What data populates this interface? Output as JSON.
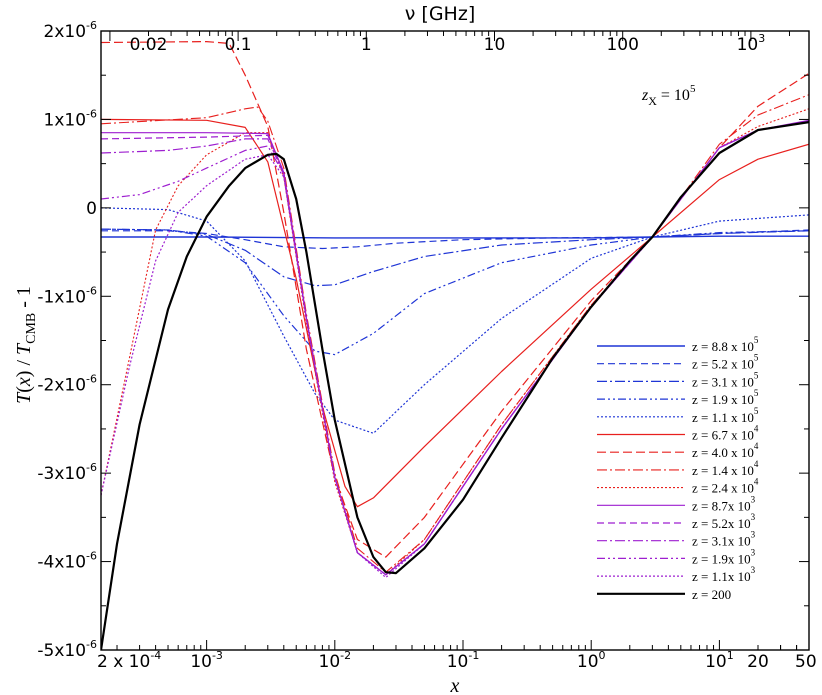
{
  "chart_data": {
    "type": "line",
    "top_axis_title": "ν  [GHz]",
    "x_axis_title": "x",
    "y_axis_title": "T(x) / T_CMB - 1",
    "annotation": "z_X = 10^5",
    "x_scale": "log",
    "xlim": [
      0.00015,
      50
    ],
    "ylim": [
      -5e-06,
      2e-06
    ],
    "x_ticks": [
      {
        "value": 0.0002,
        "label": "2 x 10^-4"
      },
      {
        "value": 0.001,
        "label": "10^-3"
      },
      {
        "value": 0.01,
        "label": "10^-2"
      },
      {
        "value": 0.1,
        "label": "10^-1"
      },
      {
        "value": 1,
        "label": "10^0"
      },
      {
        "value": 10,
        "label": "10^1"
      },
      {
        "value": 20,
        "label": "20"
      },
      {
        "value": 50,
        "label": "50"
      }
    ],
    "y_ticks": [
      {
        "value": 2e-06,
        "label": "2x10^-6"
      },
      {
        "value": 1e-06,
        "label": "1x10^-6"
      },
      {
        "value": 0,
        "label": "0"
      },
      {
        "value": -1e-06,
        "label": "-1x10^-6"
      },
      {
        "value": -2e-06,
        "label": "-2x10^-6"
      },
      {
        "value": -3e-06,
        "label": "-3x10^-6"
      },
      {
        "value": -4e-06,
        "label": "-4x10^-6"
      },
      {
        "value": -5e-06,
        "label": "-5x10^-6"
      }
    ],
    "top_ticks": [
      {
        "value": 0.02,
        "label": "0.02"
      },
      {
        "value": 0.1,
        "label": "0.1"
      },
      {
        "value": 1,
        "label": "1"
      },
      {
        "value": 10,
        "label": "10"
      },
      {
        "value": 100,
        "label": "100"
      },
      {
        "value": 1000,
        "label": "10^3"
      }
    ],
    "ghz_per_x": 56.8,
    "legend_position": "bottom-right",
    "series": [
      {
        "name": "z = 8.8 x 10^5",
        "color": "#1f35d6",
        "dash": "",
        "width": 1.4,
        "points": [
          [
            0.00015,
            -0.33
          ],
          [
            0.001,
            -0.33
          ],
          [
            0.01,
            -0.34
          ],
          [
            0.1,
            -0.34
          ],
          [
            1,
            -0.34
          ],
          [
            3,
            -0.33
          ],
          [
            10,
            -0.32
          ],
          [
            50,
            -0.32
          ]
        ]
      },
      {
        "name": "z = 5.2 x 10^5",
        "color": "#1f35d6",
        "dash": "7,4",
        "width": 1.2,
        "points": [
          [
            0.00015,
            -0.26
          ],
          [
            0.0005,
            -0.26
          ],
          [
            0.001,
            -0.29
          ],
          [
            0.002,
            -0.36
          ],
          [
            0.004,
            -0.44
          ],
          [
            0.008,
            -0.46
          ],
          [
            0.015,
            -0.44
          ],
          [
            0.03,
            -0.4
          ],
          [
            0.1,
            -0.36
          ],
          [
            0.5,
            -0.34
          ],
          [
            3,
            -0.33
          ],
          [
            10,
            -0.29
          ],
          [
            50,
            -0.25
          ]
        ]
      },
      {
        "name": "z = 3.1 x 10^5",
        "color": "#1f35d6",
        "dash": "10,3,2,3",
        "width": 1.2,
        "points": [
          [
            0.00015,
            -0.24
          ],
          [
            0.0005,
            -0.25
          ],
          [
            0.001,
            -0.3
          ],
          [
            0.002,
            -0.48
          ],
          [
            0.004,
            -0.78
          ],
          [
            0.007,
            -0.88
          ],
          [
            0.01,
            -0.87
          ],
          [
            0.02,
            -0.72
          ],
          [
            0.05,
            -0.55
          ],
          [
            0.2,
            -0.42
          ],
          [
            1,
            -0.36
          ],
          [
            3,
            -0.33
          ],
          [
            10,
            -0.29
          ],
          [
            50,
            -0.26
          ]
        ]
      },
      {
        "name": "z = 1.9 x 10^5",
        "color": "#1f35d6",
        "dash": "8,3,2,3,2,3",
        "width": 1.2,
        "points": [
          [
            0.00015,
            -0.24
          ],
          [
            0.0005,
            -0.25
          ],
          [
            0.001,
            -0.32
          ],
          [
            0.002,
            -0.62
          ],
          [
            0.004,
            -1.22
          ],
          [
            0.007,
            -1.62
          ],
          [
            0.01,
            -1.66
          ],
          [
            0.02,
            -1.42
          ],
          [
            0.05,
            -0.97
          ],
          [
            0.2,
            -0.62
          ],
          [
            1,
            -0.42
          ],
          [
            3,
            -0.33
          ],
          [
            10,
            -0.28
          ],
          [
            50,
            -0.26
          ]
        ]
      },
      {
        "name": "z = 1.1 x 10^5",
        "color": "#1f35d6",
        "dash": "2,2",
        "width": 1.2,
        "points": [
          [
            0.00015,
            0.0
          ],
          [
            0.0005,
            -0.02
          ],
          [
            0.001,
            -0.15
          ],
          [
            0.002,
            -0.6
          ],
          [
            0.004,
            -1.45
          ],
          [
            0.007,
            -2.1
          ],
          [
            0.01,
            -2.4
          ],
          [
            0.02,
            -2.55
          ],
          [
            0.05,
            -2.0
          ],
          [
            0.2,
            -1.25
          ],
          [
            1,
            -0.57
          ],
          [
            3,
            -0.33
          ],
          [
            10,
            -0.15
          ],
          [
            50,
            -0.08
          ]
        ]
      },
      {
        "name": "z = 6.7 x 10^4",
        "color": "#e8201e",
        "dash": "",
        "width": 1.2,
        "points": [
          [
            0.00015,
            1.0
          ],
          [
            0.001,
            0.99
          ],
          [
            0.002,
            0.91
          ],
          [
            0.003,
            0.52
          ],
          [
            0.005,
            -0.8
          ],
          [
            0.008,
            -2.25
          ],
          [
            0.012,
            -3.15
          ],
          [
            0.015,
            -3.38
          ],
          [
            0.02,
            -3.28
          ],
          [
            0.05,
            -2.7
          ],
          [
            0.2,
            -1.85
          ],
          [
            1,
            -0.92
          ],
          [
            3,
            -0.33
          ],
          [
            10,
            0.32
          ],
          [
            20,
            0.55
          ],
          [
            50,
            0.72
          ]
        ]
      },
      {
        "name": "z = 4.0 x 10^4",
        "color": "#e8201e",
        "dash": "9,4",
        "width": 1.2,
        "points": [
          [
            0.00015,
            1.87
          ],
          [
            0.001,
            1.88
          ],
          [
            0.0015,
            1.86
          ],
          [
            0.002,
            1.5
          ],
          [
            0.003,
            0.92
          ],
          [
            0.004,
            -0.05
          ],
          [
            0.006,
            -1.6
          ],
          [
            0.01,
            -3.05
          ],
          [
            0.015,
            -3.75
          ],
          [
            0.025,
            -3.95
          ],
          [
            0.05,
            -3.5
          ],
          [
            0.2,
            -2.3
          ],
          [
            1,
            -1.05
          ],
          [
            3,
            -0.33
          ],
          [
            10,
            0.68
          ],
          [
            20,
            1.15
          ],
          [
            50,
            1.52
          ]
        ]
      },
      {
        "name": "z = 1.4 x 10^4",
        "color": "#e8201e",
        "dash": "10,3,2,3",
        "width": 1.1,
        "points": [
          [
            0.00015,
            0.95
          ],
          [
            0.001,
            1.02
          ],
          [
            0.002,
            1.12
          ],
          [
            0.0025,
            1.14
          ],
          [
            0.003,
            0.98
          ],
          [
            0.004,
            0.45
          ],
          [
            0.006,
            -1.2
          ],
          [
            0.01,
            -3.0
          ],
          [
            0.015,
            -3.85
          ],
          [
            0.025,
            -4.12
          ],
          [
            0.05,
            -3.75
          ],
          [
            0.2,
            -2.45
          ],
          [
            1,
            -1.1
          ],
          [
            3,
            -0.33
          ],
          [
            10,
            0.72
          ],
          [
            20,
            1.05
          ],
          [
            50,
            1.28
          ]
        ]
      },
      {
        "name": "z = 2.4 x 10^4",
        "color": "#e8201e",
        "dash": "2,2",
        "width": 1.1,
        "points": [
          [
            0.00015,
            -3.25
          ],
          [
            0.00025,
            -1.7
          ],
          [
            0.0004,
            -0.25
          ],
          [
            0.0006,
            0.25
          ],
          [
            0.001,
            0.6
          ],
          [
            0.002,
            0.85
          ],
          [
            0.003,
            0.85
          ],
          [
            0.004,
            0.35
          ],
          [
            0.006,
            -1.3
          ],
          [
            0.01,
            -3.1
          ],
          [
            0.015,
            -3.9
          ],
          [
            0.025,
            -4.15
          ],
          [
            0.05,
            -3.75
          ],
          [
            0.2,
            -2.45
          ],
          [
            1,
            -1.1
          ],
          [
            3,
            -0.33
          ],
          [
            10,
            0.68
          ],
          [
            20,
            0.92
          ],
          [
            50,
            1.12
          ]
        ]
      },
      {
        "name": "z = 8.7x 10^3",
        "color": "#9e1fd0",
        "dash": "",
        "width": 1.2,
        "points": [
          [
            0.00015,
            0.85
          ],
          [
            0.001,
            0.85
          ],
          [
            0.003,
            0.84
          ],
          [
            0.004,
            0.4
          ],
          [
            0.006,
            -1.25
          ],
          [
            0.01,
            -3.05
          ],
          [
            0.015,
            -3.9
          ],
          [
            0.025,
            -4.15
          ],
          [
            0.05,
            -3.8
          ],
          [
            0.2,
            -2.5
          ],
          [
            1,
            -1.12
          ],
          [
            3,
            -0.33
          ],
          [
            10,
            0.68
          ],
          [
            20,
            0.88
          ],
          [
            50,
            0.99
          ]
        ]
      },
      {
        "name": "z = 5.2x 10^3",
        "color": "#9e1fd0",
        "dash": "7,4",
        "width": 1.2,
        "points": [
          [
            0.00015,
            0.78
          ],
          [
            0.001,
            0.8
          ],
          [
            0.003,
            0.82
          ],
          [
            0.004,
            0.4
          ],
          [
            0.006,
            -1.25
          ],
          [
            0.01,
            -3.05
          ],
          [
            0.015,
            -3.9
          ],
          [
            0.025,
            -4.15
          ],
          [
            0.05,
            -3.8
          ],
          [
            0.2,
            -2.5
          ],
          [
            1,
            -1.12
          ],
          [
            3,
            -0.33
          ],
          [
            10,
            0.68
          ],
          [
            20,
            0.88
          ],
          [
            50,
            0.98
          ]
        ]
      },
      {
        "name": "z = 3.1x 10^3",
        "color": "#9e1fd0",
        "dash": "10,3,2,3",
        "width": 1.2,
        "points": [
          [
            0.00015,
            0.62
          ],
          [
            0.0005,
            0.65
          ],
          [
            0.001,
            0.7
          ],
          [
            0.002,
            0.78
          ],
          [
            0.003,
            0.78
          ],
          [
            0.004,
            0.38
          ],
          [
            0.006,
            -1.25
          ],
          [
            0.01,
            -3.05
          ],
          [
            0.015,
            -3.9
          ],
          [
            0.025,
            -4.15
          ],
          [
            0.05,
            -3.8
          ],
          [
            0.2,
            -2.5
          ],
          [
            1,
            -1.12
          ],
          [
            3,
            -0.33
          ],
          [
            10,
            0.68
          ],
          [
            20,
            0.88
          ],
          [
            50,
            0.98
          ]
        ]
      },
      {
        "name": "z = 1.9x 10^3",
        "color": "#9e1fd0",
        "dash": "8,3,2,3,2,3",
        "width": 1.2,
        "points": [
          [
            0.00015,
            0.1
          ],
          [
            0.0003,
            0.15
          ],
          [
            0.0006,
            0.3
          ],
          [
            0.001,
            0.45
          ],
          [
            0.002,
            0.65
          ],
          [
            0.003,
            0.7
          ],
          [
            0.004,
            0.38
          ],
          [
            0.006,
            -1.25
          ],
          [
            0.01,
            -3.05
          ],
          [
            0.015,
            -3.9
          ],
          [
            0.025,
            -4.15
          ],
          [
            0.05,
            -3.8
          ],
          [
            0.2,
            -2.5
          ],
          [
            1,
            -1.12
          ],
          [
            3,
            -0.33
          ],
          [
            10,
            0.68
          ],
          [
            20,
            0.88
          ],
          [
            50,
            0.98
          ]
        ]
      },
      {
        "name": "z = 1.1x 10^3",
        "color": "#9e1fd0",
        "dash": "2,2",
        "width": 1.2,
        "points": [
          [
            0.00015,
            -3.25
          ],
          [
            0.00025,
            -1.8
          ],
          [
            0.0004,
            -0.6
          ],
          [
            0.0006,
            -0.05
          ],
          [
            0.001,
            0.25
          ],
          [
            0.002,
            0.55
          ],
          [
            0.003,
            0.6
          ],
          [
            0.004,
            0.35
          ],
          [
            0.006,
            -1.25
          ],
          [
            0.01,
            -3.05
          ],
          [
            0.015,
            -3.9
          ],
          [
            0.025,
            -4.18
          ],
          [
            0.05,
            -3.8
          ],
          [
            0.2,
            -2.5
          ],
          [
            1,
            -1.12
          ],
          [
            3,
            -0.33
          ],
          [
            10,
            0.68
          ],
          [
            20,
            0.88
          ],
          [
            50,
            0.98
          ]
        ]
      },
      {
        "name": "z = 200",
        "color": "#000000",
        "dash": "",
        "width": 2.2,
        "points": [
          [
            0.00015,
            -5.0
          ],
          [
            0.0002,
            -3.8
          ],
          [
            0.0003,
            -2.45
          ],
          [
            0.0005,
            -1.15
          ],
          [
            0.0007,
            -0.55
          ],
          [
            0.001,
            -0.1
          ],
          [
            0.0015,
            0.25
          ],
          [
            0.002,
            0.45
          ],
          [
            0.003,
            0.6
          ],
          [
            0.0035,
            0.61
          ],
          [
            0.004,
            0.55
          ],
          [
            0.005,
            0.1
          ],
          [
            0.006,
            -0.5
          ],
          [
            0.008,
            -1.6
          ],
          [
            0.01,
            -2.4
          ],
          [
            0.015,
            -3.5
          ],
          [
            0.02,
            -3.95
          ],
          [
            0.025,
            -4.12
          ],
          [
            0.03,
            -4.13
          ],
          [
            0.05,
            -3.85
          ],
          [
            0.1,
            -3.3
          ],
          [
            0.2,
            -2.6
          ],
          [
            0.5,
            -1.7
          ],
          [
            1,
            -1.12
          ],
          [
            2,
            -0.6
          ],
          [
            3,
            -0.33
          ],
          [
            5,
            0.12
          ],
          [
            10,
            0.62
          ],
          [
            20,
            0.88
          ],
          [
            50,
            0.97
          ]
        ]
      }
    ]
  }
}
